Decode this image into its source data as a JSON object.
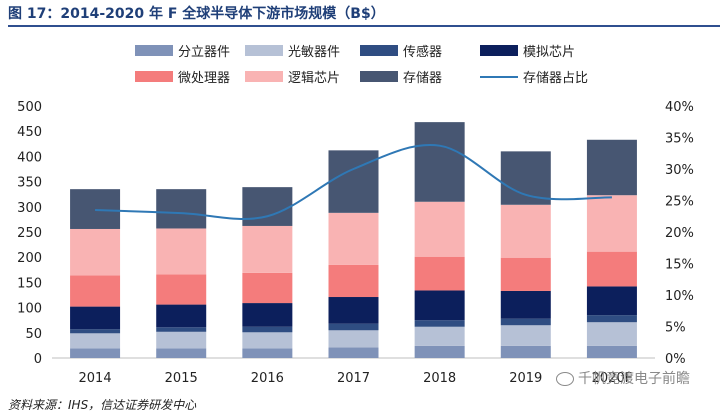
{
  "header": {
    "title": "图 17：2014-2020 年 F 全球半导体下游市场规模（B$）"
  },
  "footer": {
    "source": "资料来源：IHS，信达证券研发中心",
    "watermark": "千帆竞渡电子前瞻"
  },
  "colors": {
    "分立器件": "#7f92b8",
    "光敏器件": "#b6c1d6",
    "传感器": "#2f4d82",
    "模拟芯片": "#0c1f5c",
    "微处理器": "#f47c7c",
    "逻辑芯片": "#f9b3b3",
    "存储器": "#475672",
    "存储器占比": "#2f78b5"
  },
  "chart_data": {
    "type": "bar",
    "stacked": true,
    "title": "2014-2020 年 F 全球半导体下游市场规模（B$）",
    "categories": [
      "2014",
      "2015",
      "2016",
      "2017",
      "2018",
      "2019",
      "2020F"
    ],
    "series": [
      {
        "name": "分立器件",
        "values": [
          19,
          19,
          19,
          21,
          24,
          24,
          24
        ]
      },
      {
        "name": "光敏器件",
        "values": [
          30,
          33,
          32,
          34,
          38,
          41,
          47
        ]
      },
      {
        "name": "传感器",
        "values": [
          8,
          9,
          11,
          13,
          13,
          13,
          14
        ]
      },
      {
        "name": "模拟芯片",
        "values": [
          45,
          45,
          47,
          53,
          59,
          55,
          57
        ]
      },
      {
        "name": "微处理器",
        "values": [
          62,
          60,
          60,
          64,
          67,
          66,
          69
        ]
      },
      {
        "name": "逻辑芯片",
        "values": [
          92,
          91,
          93,
          103,
          109,
          105,
          112
        ]
      },
      {
        "name": "存储器",
        "values": [
          79,
          78,
          77,
          124,
          158,
          106,
          110
        ]
      }
    ],
    "line_series": {
      "name": "存储器占比",
      "axis": "right",
      "values": [
        23.5,
        23.0,
        22.5,
        30.0,
        33.7,
        25.9,
        25.5
      ]
    },
    "y_left": {
      "min": 0,
      "max": 500,
      "ticks": [
        "0",
        "50",
        "100",
        "150",
        "200",
        "250",
        "300",
        "350",
        "400",
        "450",
        "500"
      ]
    },
    "y_right": {
      "min": 0,
      "max": 40,
      "ticks": [
        "0%",
        "5%",
        "10%",
        "15%",
        "20%",
        "25%",
        "30%",
        "35%",
        "40%"
      ]
    },
    "legend_position": "top",
    "grid": false
  }
}
